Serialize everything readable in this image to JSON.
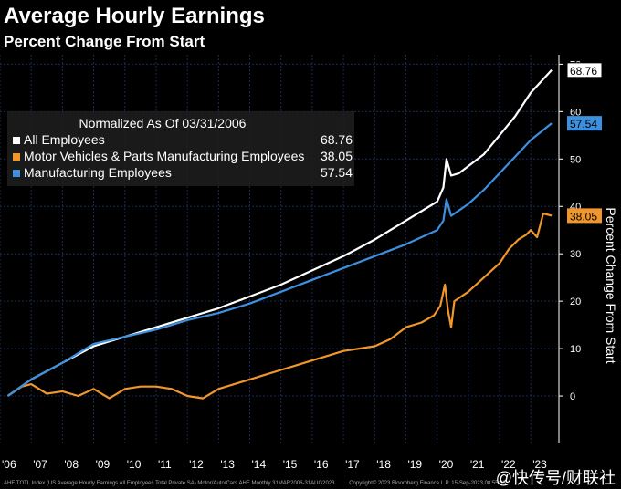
{
  "header": {
    "title": "Average Hourly Earnings",
    "subtitle": "Percent Change From Start"
  },
  "legend": {
    "heading": "Normalized As Of 03/31/2006"
  },
  "footer": {
    "source": "AHE TOTL Index (US Average Hourly Earnings All Employees Total Private SA)  Motor/Auto/Cars AHE  Monthly 31MAR2006-31AUG2023",
    "copyright": "Copyright© 2023 Bloomberg Finance L.P.    15-Sep-2023 08:55:33"
  },
  "watermark": "@快传号/财联社",
  "colors": {
    "background": "#000000",
    "grid": "#1a2a55",
    "label_box": "#ffffff"
  },
  "chart_data": {
    "type": "line",
    "ylabel": "Percent Change From Start",
    "ylim": [
      -10,
      72
    ],
    "yticks": [
      0,
      10,
      20,
      30,
      40,
      50,
      60,
      70
    ],
    "xlim": [
      2006.0,
      2023.9
    ],
    "x_ticks": [
      {
        "x": 2006,
        "label": "'06"
      },
      {
        "x": 2007,
        "label": "'07"
      },
      {
        "x": 2008,
        "label": "'08"
      },
      {
        "x": 2009,
        "label": "'09"
      },
      {
        "x": 2010,
        "label": "'10"
      },
      {
        "x": 2011,
        "label": "'11"
      },
      {
        "x": 2012,
        "label": "'12"
      },
      {
        "x": 2013,
        "label": "'13"
      },
      {
        "x": 2014,
        "label": "'14"
      },
      {
        "x": 2015,
        "label": "'15"
      },
      {
        "x": 2016,
        "label": "'16"
      },
      {
        "x": 2017,
        "label": "'17"
      },
      {
        "x": 2018,
        "label": "'18"
      },
      {
        "x": 2019,
        "label": "'19"
      },
      {
        "x": 2020,
        "label": "'20"
      },
      {
        "x": 2021,
        "label": "'21"
      },
      {
        "x": 2022,
        "label": "'22"
      },
      {
        "x": 2023,
        "label": "'23"
      }
    ],
    "legend_position": "top-left",
    "grid": true,
    "series": [
      {
        "name": "All Employees",
        "color": "#ffffff",
        "last_value": "68.76",
        "points": [
          [
            2006.25,
            0
          ],
          [
            2007,
            3.5
          ],
          [
            2008,
            7
          ],
          [
            2009,
            10.5
          ],
          [
            2010,
            12.5
          ],
          [
            2011,
            14.5
          ],
          [
            2012,
            16.5
          ],
          [
            2013,
            18.5
          ],
          [
            2014,
            21
          ],
          [
            2015,
            23.5
          ],
          [
            2016,
            26.5
          ],
          [
            2017,
            29.5
          ],
          [
            2018,
            33
          ],
          [
            2019,
            37
          ],
          [
            2020.0,
            41
          ],
          [
            2020.2,
            44
          ],
          [
            2020.3,
            50
          ],
          [
            2020.45,
            46.5
          ],
          [
            2020.7,
            47
          ],
          [
            2021,
            48.5
          ],
          [
            2021.5,
            51
          ],
          [
            2022,
            55
          ],
          [
            2022.5,
            59
          ],
          [
            2023,
            64
          ],
          [
            2023.67,
            68.76
          ]
        ]
      },
      {
        "name": "Motor Vehicles & Parts Manufacturing Employees",
        "color": "#f0962a",
        "last_value": "38.05",
        "points": [
          [
            2006.25,
            0
          ],
          [
            2006.7,
            2
          ],
          [
            2007,
            2.5
          ],
          [
            2007.5,
            0.5
          ],
          [
            2008,
            1
          ],
          [
            2008.5,
            0
          ],
          [
            2009,
            1.5
          ],
          [
            2009.5,
            -0.5
          ],
          [
            2010,
            1.5
          ],
          [
            2010.5,
            2
          ],
          [
            2011,
            2
          ],
          [
            2011.5,
            1.5
          ],
          [
            2012,
            0
          ],
          [
            2012.5,
            -0.5
          ],
          [
            2013,
            1.5
          ],
          [
            2013.5,
            2.5
          ],
          [
            2014,
            3.5
          ],
          [
            2014.5,
            4.5
          ],
          [
            2015,
            5.5
          ],
          [
            2015.5,
            6.5
          ],
          [
            2016,
            7.5
          ],
          [
            2016.5,
            8.5
          ],
          [
            2017,
            9.5
          ],
          [
            2017.5,
            10
          ],
          [
            2018,
            10.5
          ],
          [
            2018.5,
            12
          ],
          [
            2019,
            14.5
          ],
          [
            2019.5,
            15.5
          ],
          [
            2019.9,
            17
          ],
          [
            2020.1,
            19
          ],
          [
            2020.25,
            23.5
          ],
          [
            2020.35,
            18
          ],
          [
            2020.45,
            14.5
          ],
          [
            2020.55,
            20
          ],
          [
            2021,
            22
          ],
          [
            2021.5,
            25
          ],
          [
            2022,
            28
          ],
          [
            2022.3,
            31
          ],
          [
            2022.6,
            33
          ],
          [
            2022.85,
            34
          ],
          [
            2023,
            35
          ],
          [
            2023.2,
            33.5
          ],
          [
            2023.4,
            38.5
          ],
          [
            2023.67,
            38.05
          ]
        ]
      },
      {
        "name": "Manufacturing Employees",
        "color": "#3d8fe0",
        "last_value": "57.54",
        "points": [
          [
            2006.25,
            0
          ],
          [
            2007,
            3.5
          ],
          [
            2008,
            7
          ],
          [
            2009,
            11
          ],
          [
            2010,
            12.5
          ],
          [
            2011,
            14
          ],
          [
            2012,
            16
          ],
          [
            2013,
            17.5
          ],
          [
            2014,
            19.5
          ],
          [
            2015,
            22
          ],
          [
            2016,
            24.5
          ],
          [
            2017,
            27
          ],
          [
            2018,
            29.5
          ],
          [
            2019,
            32
          ],
          [
            2020.0,
            35
          ],
          [
            2020.2,
            37
          ],
          [
            2020.3,
            41.5
          ],
          [
            2020.45,
            38
          ],
          [
            2021,
            40.5
          ],
          [
            2021.5,
            43.5
          ],
          [
            2022,
            47
          ],
          [
            2022.5,
            50.5
          ],
          [
            2023,
            54
          ],
          [
            2023.67,
            57.54
          ]
        ]
      }
    ]
  }
}
